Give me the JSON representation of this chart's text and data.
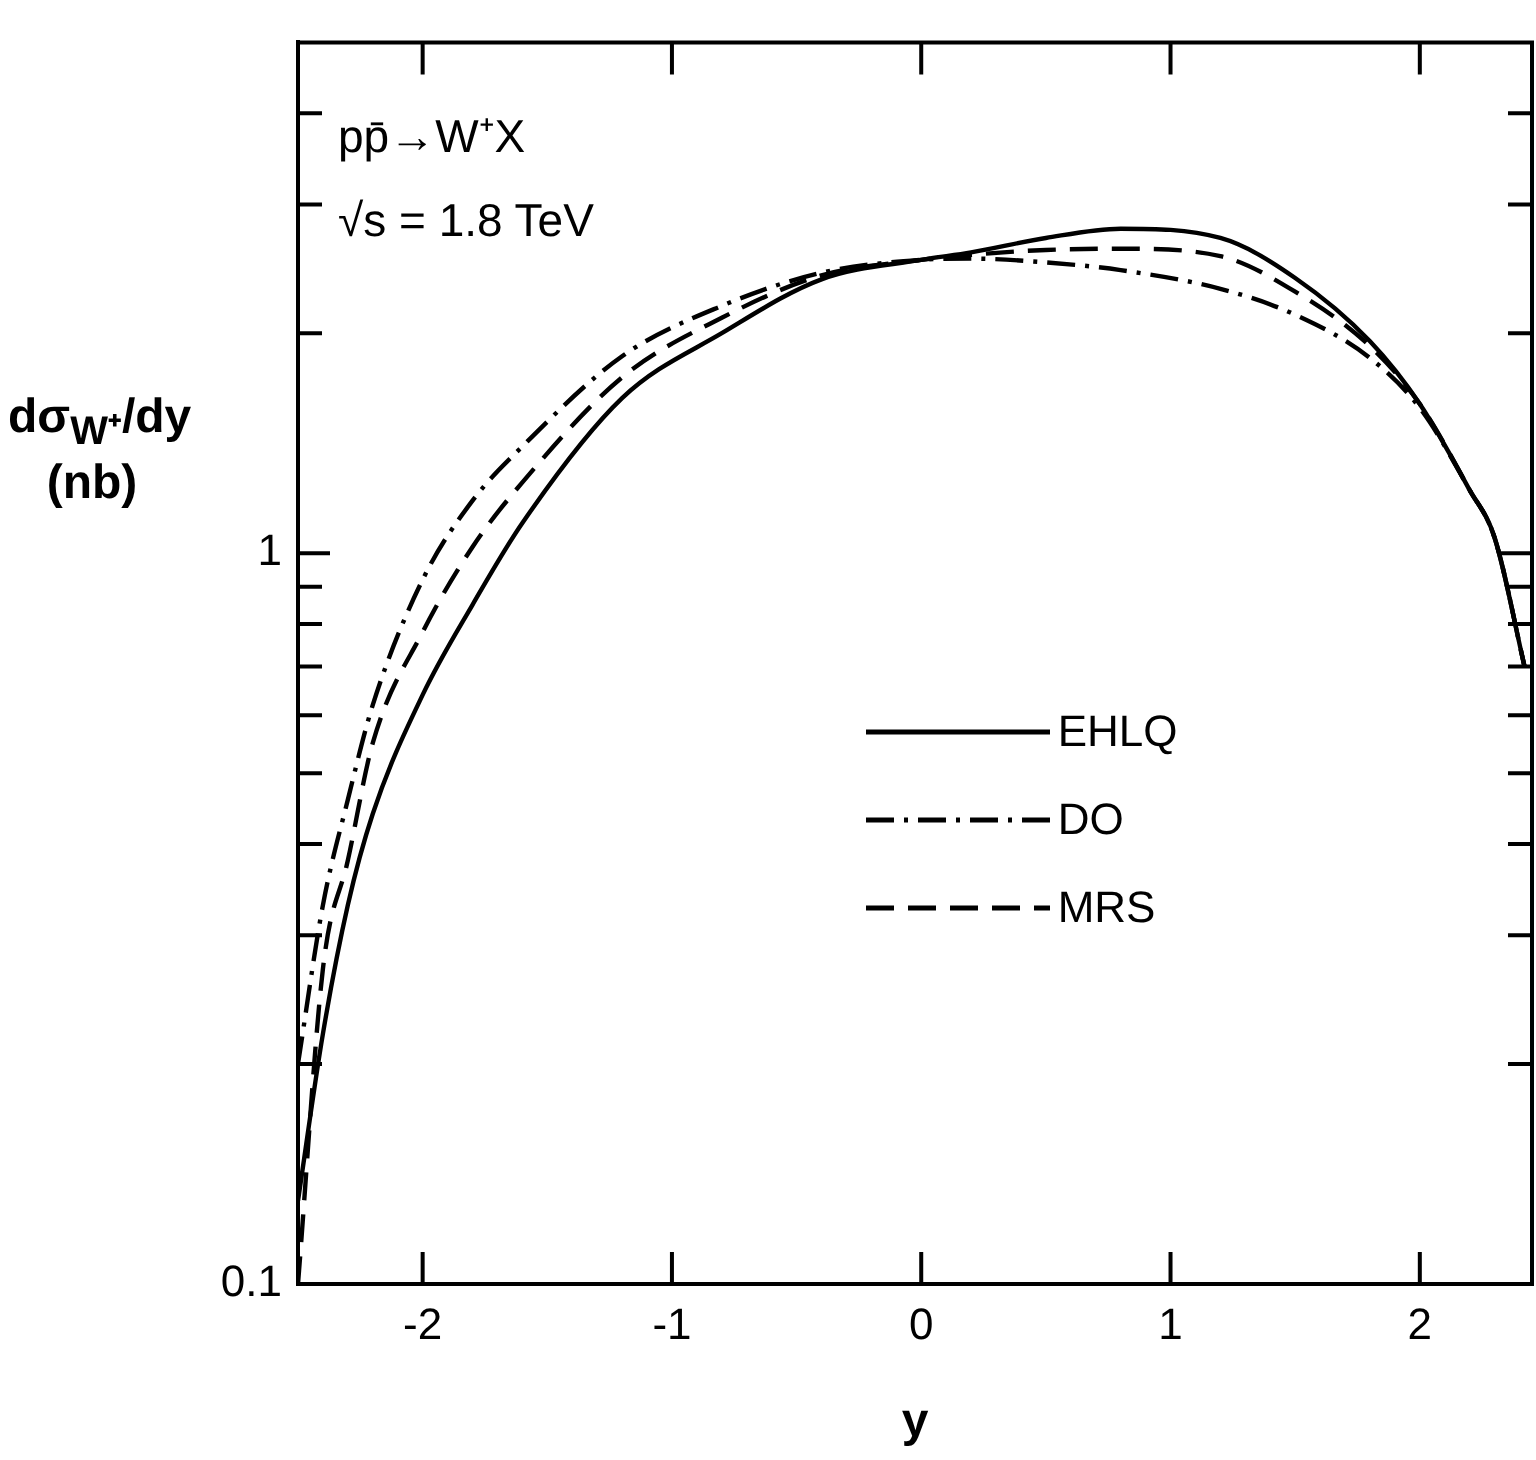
{
  "chart_data": {
    "type": "line",
    "xlabel": "y",
    "ylabel": "dσ$_{W⁺}$/dy (nb)",
    "annotations": [
      "pp̄→W⁺X",
      "√s = 1.8 TeV"
    ],
    "log": "y",
    "legend": "right",
    "grid": false,
    "marker": "none",
    "xlim": [
      -2.5,
      2.45
    ],
    "xticks": [
      -2,
      -1,
      0,
      1,
      2
    ],
    "ylim": [
      0.1,
      5
    ],
    "yticks": [
      0.1,
      {
        "value": 0.2,
        "label": null
      },
      {
        "value": 0.3,
        "label": null
      },
      {
        "value": 0.4,
        "label": null
      },
      {
        "value": 0.5,
        "label": null
      },
      {
        "value": 0.6,
        "label": null
      },
      {
        "value": 0.7,
        "label": null
      },
      {
        "value": 0.8,
        "label": null
      },
      {
        "value": 0.9,
        "label": null
      },
      1,
      {
        "value": 2,
        "label": null
      },
      {
        "value": 3,
        "label": null
      },
      {
        "value": 4,
        "label": null
      }
    ],
    "x": [
      -2.5,
      -2.4,
      -2.3,
      -2.2,
      -2.0,
      -1.8,
      -1.6,
      -1.2,
      -0.8,
      -0.4,
      0,
      0.2,
      0.5,
      0.8,
      1.2,
      1.5,
      1.8,
      2.0,
      2.2,
      2.3,
      2.42
    ],
    "series": [
      {
        "name": "EHLQ",
        "color": "#000000",
        "line_style": "solid",
        "values": [
          0.13,
          0.22,
          0.33,
          0.44,
          0.64,
          0.85,
          1.1,
          1.63,
          2.0,
          2.37,
          2.52,
          2.58,
          2.7,
          2.78,
          2.7,
          2.38,
          1.95,
          1.6,
          1.22,
          1.05,
          0.7
        ]
      },
      {
        "name": "DO",
        "color": "#000000",
        "line_style": "dashdot",
        "values": [
          0.2,
          0.33,
          0.46,
          0.62,
          0.92,
          1.18,
          1.4,
          1.86,
          2.18,
          2.42,
          2.52,
          2.53,
          2.5,
          2.44,
          2.3,
          2.12,
          1.85,
          1.58,
          1.22,
          1.05,
          0.7
        ]
      },
      {
        "name": "MRS",
        "color": "#000000",
        "line_style": "dashed",
        "values": [
          0.1,
          0.27,
          0.38,
          0.55,
          0.78,
          1.02,
          1.25,
          1.74,
          2.1,
          2.4,
          2.52,
          2.56,
          2.6,
          2.61,
          2.55,
          2.28,
          1.92,
          1.6,
          1.22,
          1.05,
          0.7
        ]
      }
    ]
  }
}
